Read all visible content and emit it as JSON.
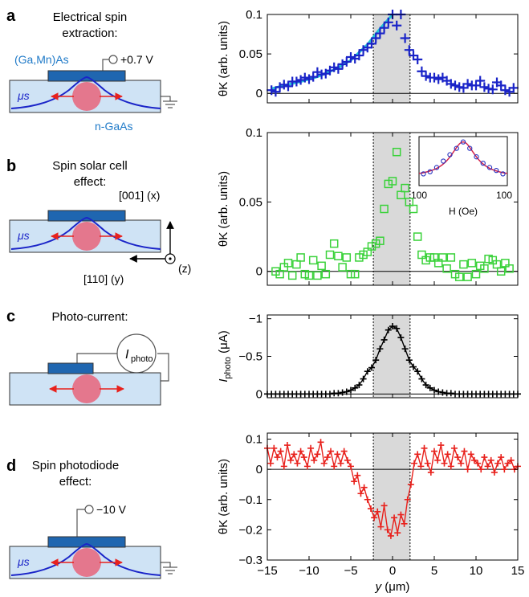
{
  "colors": {
    "blue_marker": "#1a24c8",
    "cyan_fit": "#22c4d6",
    "green_marker": "#3ad23a",
    "black_marker": "#000000",
    "red_marker": "#e8211c",
    "inset_fit": "#d4244a",
    "inset_marker": "#2430c0",
    "shade": "#d9d9d9",
    "schematic_blue": "#1f66b0",
    "schematic_light": "#cfe3f5",
    "spot": "#e8647a",
    "label_blue": "#1f7ac8"
  },
  "panels": {
    "a": {
      "letter": "a",
      "title_line1": "Electrical spin",
      "title_line2": "extraction:",
      "material_top": "(Ga,Mn)As",
      "voltage": "+0.7 V",
      "mu_label": "μs",
      "material_bottom": "n-GaAs"
    },
    "b": {
      "letter": "b",
      "title_line1": "Spin solar cell",
      "title_line2": "effect:",
      "mu_label": "μs",
      "axis_x": "[001] (x)",
      "axis_y": "[110] (y)",
      "axis_z": "(z)"
    },
    "c": {
      "letter": "c",
      "title_line1": "Photo-current:",
      "meter_label": "I",
      "meter_sub": "photo"
    },
    "d": {
      "letter": "d",
      "title_line1": "Spin photodiode",
      "title_line2": "effect:",
      "voltage": "−10 V",
      "mu_label": "μs"
    }
  },
  "chart_data": [
    {
      "id": "a",
      "type": "scatter",
      "ylabel": "θK (arb. units)",
      "x_range": [
        -15,
        15
      ],
      "y_range": [
        -0.012,
        0.1
      ],
      "yticks": [
        0,
        0.05,
        0.1
      ],
      "ytick_labels": [
        "0",
        "0.05",
        "0.1"
      ],
      "marker": "plus",
      "shaded_region": [
        -2.3,
        2.1
      ],
      "series": [
        {
          "x": [
            -14.5,
            -14,
            -13.5,
            -13,
            -12.5,
            -12,
            -11.5,
            -11,
            -10.5,
            -10,
            -9.5,
            -9,
            -8.5,
            -8,
            -7.5,
            -7,
            -6.5,
            -6,
            -5.5,
            -5,
            -4.5,
            -4,
            -3.5,
            -3,
            -2.5,
            -2,
            -1.5,
            -1,
            -0.5,
            0,
            0.5,
            1,
            1.5,
            2,
            2.5,
            3,
            3.5,
            4,
            4.5,
            5,
            5.5,
            6,
            6.5,
            7,
            7.5,
            8,
            8.5,
            9,
            9.5,
            10,
            10.5,
            11,
            11.5,
            12,
            12.5,
            13,
            13.5,
            14,
            14.5
          ],
          "y": [
            0.004,
            0.002,
            0.008,
            0.011,
            0.009,
            0.015,
            0.015,
            0.017,
            0.02,
            0.018,
            0.021,
            0.027,
            0.024,
            0.025,
            0.029,
            0.033,
            0.031,
            0.037,
            0.04,
            0.046,
            0.044,
            0.048,
            0.055,
            0.058,
            0.063,
            0.07,
            0.076,
            0.083,
            0.09,
            0.1,
            0.086,
            0.1,
            0.07,
            0.055,
            0.048,
            0.043,
            0.028,
            0.022,
            0.02,
            0.02,
            0.018,
            0.02,
            0.016,
            0.012,
            0.01,
            0.008,
            0.007,
            0.012,
            0.01,
            0.01,
            0.016,
            0.008,
            0.006,
            0.005,
            0.014,
            0.01,
            0.004,
            0.002,
            0.007
          ]
        }
      ],
      "fit": {
        "x": [
          -14.5,
          -13,
          -11,
          -9,
          -7,
          -5,
          -3,
          -1.5,
          0
        ],
        "y": [
          0.006,
          0.01,
          0.015,
          0.021,
          0.03,
          0.042,
          0.062,
          0.082,
          0.1
        ]
      }
    },
    {
      "id": "b",
      "type": "scatter",
      "ylabel": "θK (arb. units)",
      "x_range": [
        -15,
        15
      ],
      "y_range": [
        -0.01,
        0.1
      ],
      "yticks": [
        0,
        0.05,
        0.1
      ],
      "ytick_labels": [
        "0",
        "0.05",
        "0.1"
      ],
      "marker": "square",
      "shaded_region": [
        -2.3,
        2.1
      ],
      "series": [
        {
          "x": [
            -14,
            -13.5,
            -13,
            -12.5,
            -12,
            -11.5,
            -11,
            -10.5,
            -10,
            -9.5,
            -9,
            -8.5,
            -8,
            -7.5,
            -7,
            -6.5,
            -6,
            -5.5,
            -5,
            -4.5,
            -4,
            -3.5,
            -3,
            -2.5,
            -2,
            -1.5,
            -1,
            -0.5,
            0,
            0.5,
            1,
            1.5,
            2,
            2.5,
            3,
            3.5,
            4,
            4.5,
            5,
            5.5,
            6,
            6.5,
            7,
            7.5,
            8,
            8.5,
            9,
            9.5,
            10,
            10.5,
            11,
            11.5,
            12,
            12.5,
            13,
            13.5,
            14
          ],
          "y": [
            0,
            -0.002,
            0.003,
            0.006,
            -0.003,
            0.005,
            0.01,
            -0.002,
            -0.003,
            0.008,
            -0.003,
            0.004,
            -0.002,
            0.012,
            0.02,
            0.011,
            0.003,
            0.01,
            -0.002,
            -0.002,
            0.01,
            0.012,
            0.014,
            0.018,
            0.02,
            0.022,
            0.045,
            0.063,
            0.065,
            0.086,
            0.055,
            0.06,
            0.05,
            0.045,
            0.025,
            0.012,
            0.008,
            0.01,
            0.01,
            0.006,
            0.01,
            0.002,
            0.01,
            -0.002,
            -0.004,
            0.005,
            -0.004,
            0.006,
            -0.002,
            0.004,
            0.002,
            0.009,
            0.008,
            0.005,
            0,
            0.006,
            0.002
          ]
        }
      ],
      "inset": {
        "xlabel": "H (Oe)",
        "tick_left": "100",
        "tick_right": "100",
        "points_x": [
          -90,
          -75,
          -60,
          -45,
          -30,
          -15,
          0,
          15,
          30,
          45,
          60,
          75,
          90
        ],
        "points_y": [
          0.2,
          0.25,
          0.35,
          0.5,
          0.65,
          0.8,
          0.95,
          0.8,
          0.6,
          0.45,
          0.35,
          0.28,
          0.2
        ]
      }
    },
    {
      "id": "c",
      "type": "line",
      "ylabel": "Iphoto (μA)",
      "ylabel_main": "I",
      "ylabel_sub": "photo",
      "ylabel_unit": " (μA)",
      "x_range": [
        -15,
        15
      ],
      "y_range": [
        0.05,
        -1.05
      ],
      "yticks": [
        0,
        -0.5,
        -1
      ],
      "ytick_labels": [
        "0",
        "−0.5",
        "−1"
      ],
      "marker": "plus",
      "shaded_region": [
        -2.3,
        2.1
      ],
      "series": [
        {
          "x": [
            -15,
            -14.5,
            -14,
            -13.5,
            -13,
            -12.5,
            -12,
            -11.5,
            -11,
            -10.5,
            -10,
            -9.5,
            -9,
            -8.5,
            -8,
            -7.5,
            -7,
            -6.5,
            -6,
            -5.5,
            -5,
            -4.5,
            -4,
            -3.5,
            -3,
            -2.5,
            -2,
            -1.5,
            -1,
            -0.5,
            0,
            0.5,
            1,
            1.5,
            2,
            2.5,
            3,
            3.5,
            4,
            4.5,
            5,
            5.5,
            6,
            6.5,
            7,
            7.5,
            8,
            8.5,
            9,
            9.5,
            10,
            10.5,
            11,
            11.5,
            12,
            12.5,
            13,
            13.5,
            14,
            14.5,
            15
          ],
          "y": [
            0,
            0,
            0,
            0,
            0,
            0,
            0,
            0,
            0,
            0,
            0,
            0,
            0,
            0,
            0,
            0,
            -0.01,
            -0.01,
            -0.02,
            -0.03,
            -0.05,
            -0.08,
            -0.12,
            -0.2,
            -0.3,
            -0.35,
            -0.45,
            -0.6,
            -0.72,
            -0.85,
            -0.9,
            -0.87,
            -0.75,
            -0.6,
            -0.45,
            -0.36,
            -0.3,
            -0.2,
            -0.12,
            -0.08,
            -0.05,
            -0.03,
            -0.02,
            -0.01,
            -0.01,
            0,
            0,
            0,
            0,
            0,
            0,
            0,
            0,
            0,
            0,
            0,
            0,
            0,
            0,
            0,
            0
          ]
        }
      ]
    },
    {
      "id": "d",
      "type": "line",
      "ylabel": "θK (arb. units)",
      "x_range": [
        -15,
        15
      ],
      "y_range": [
        -0.3,
        0.12
      ],
      "yticks": [
        0.1,
        0,
        -0.1,
        -0.2,
        -0.3
      ],
      "ytick_labels": [
        "0.1",
        "0",
        "−0.1",
        "−0.2",
        "−0.3"
      ],
      "xticks": [
        -15,
        -10,
        -5,
        0,
        5,
        10,
        15
      ],
      "xtick_labels": [
        "−15",
        "−10",
        "−5",
        "0",
        "5",
        "10",
        "15"
      ],
      "xlabel_main": "y",
      "xlabel_unit": " (μm)",
      "marker": "plus",
      "shaded_region": [
        -2.3,
        2.1
      ],
      "series": [
        {
          "x": [
            -15,
            -14.6,
            -14.2,
            -13.8,
            -13.4,
            -13,
            -12.6,
            -12.2,
            -11.8,
            -11.4,
            -11,
            -10.6,
            -10.2,
            -9.8,
            -9.4,
            -9,
            -8.6,
            -8.2,
            -7.8,
            -7.4,
            -7,
            -6.6,
            -6.2,
            -5.8,
            -5.4,
            -5,
            -4.6,
            -4.2,
            -3.8,
            -3.4,
            -3,
            -2.6,
            -2.2,
            -1.8,
            -1.4,
            -1,
            -0.6,
            -0.2,
            0.2,
            0.6,
            1,
            1.4,
            1.8,
            2.2,
            2.6,
            3,
            3.4,
            3.8,
            4.2,
            4.6,
            5,
            5.4,
            5.8,
            6.2,
            6.6,
            7,
            7.4,
            7.8,
            8.2,
            8.6,
            9,
            9.4,
            9.8,
            10.2,
            10.6,
            11,
            11.4,
            11.8,
            12.2,
            12.6,
            13,
            13.4,
            13.8,
            14.2,
            14.6,
            15
          ],
          "y": [
            0.07,
            0.02,
            0.07,
            0.04,
            0.06,
            0.01,
            0.08,
            0.03,
            0.05,
            0.02,
            0.06,
            0.04,
            0.01,
            0.07,
            0.03,
            0.05,
            0.09,
            0.02,
            0.04,
            0.06,
            0.01,
            0.05,
            0.02,
            0.06,
            0.03,
            0.01,
            -0.04,
            -0.02,
            -0.08,
            -0.06,
            -0.1,
            -0.13,
            -0.16,
            -0.14,
            -0.19,
            -0.12,
            -0.2,
            -0.22,
            -0.16,
            -0.21,
            -0.15,
            -0.18,
            -0.1,
            -0.05,
            0.02,
            0.05,
            0.01,
            0.07,
            0.02,
            -0.01,
            0.06,
            0.03,
            0.08,
            0.02,
            0.05,
            0.01,
            0.07,
            0.04,
            0.02,
            0.06,
            0.0,
            0.05,
            0.03,
            0.02,
            0.0,
            0.04,
            0.01,
            0.03,
            -0.01,
            0.02,
            0.04,
            0.0,
            0.02,
            0.03,
            0.0,
            0.01
          ]
        }
      ]
    }
  ]
}
